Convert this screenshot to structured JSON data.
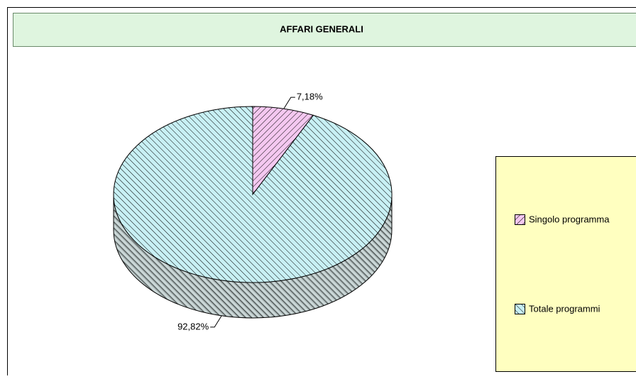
{
  "chart_data": {
    "type": "pie",
    "title": "AFFARI GENERALI",
    "categories": [
      "Singolo programma",
      "Totale programmi"
    ],
    "values": [
      7.18,
      92.82
    ],
    "value_labels": [
      "7,18%",
      "92,82%"
    ],
    "colors": [
      "#f4c8f0",
      "#c8f0f4"
    ],
    "legend": "right"
  }
}
